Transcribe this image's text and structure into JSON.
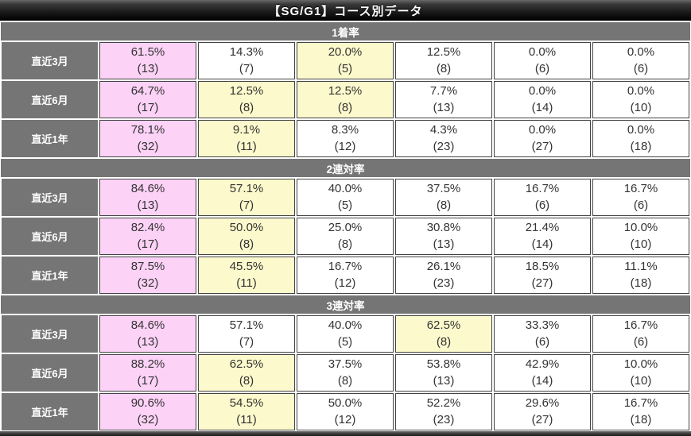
{
  "title": "【SG/G1】コース別データ",
  "colors": {
    "pink_highlight": "#fcd2f6",
    "yellow_highlight": "#fcfacc",
    "header_gray": "#757575",
    "cell_border": "#444444",
    "title_bar_black": "#1c1c1c",
    "cell_text": "#333333"
  },
  "row_labels": [
    "直近3月",
    "直近6月",
    "直近1年"
  ],
  "sections": [
    {
      "header": "1着率",
      "rows": [
        {
          "label": "直近3月",
          "cells": [
            {
              "pct": "61.5%",
              "count": "(13)",
              "bg": "pink"
            },
            {
              "pct": "14.3%",
              "count": "(7)",
              "bg": "white"
            },
            {
              "pct": "20.0%",
              "count": "(5)",
              "bg": "yellow"
            },
            {
              "pct": "12.5%",
              "count": "(8)",
              "bg": "white"
            },
            {
              "pct": "0.0%",
              "count": "(6)",
              "bg": "white"
            },
            {
              "pct": "0.0%",
              "count": "(6)",
              "bg": "white"
            }
          ]
        },
        {
          "label": "直近6月",
          "cells": [
            {
              "pct": "64.7%",
              "count": "(17)",
              "bg": "pink"
            },
            {
              "pct": "12.5%",
              "count": "(8)",
              "bg": "yellow"
            },
            {
              "pct": "12.5%",
              "count": "(8)",
              "bg": "yellow"
            },
            {
              "pct": "7.7%",
              "count": "(13)",
              "bg": "white"
            },
            {
              "pct": "0.0%",
              "count": "(14)",
              "bg": "white"
            },
            {
              "pct": "0.0%",
              "count": "(10)",
              "bg": "white"
            }
          ]
        },
        {
          "label": "直近1年",
          "cells": [
            {
              "pct": "78.1%",
              "count": "(32)",
              "bg": "pink"
            },
            {
              "pct": "9.1%",
              "count": "(11)",
              "bg": "yellow"
            },
            {
              "pct": "8.3%",
              "count": "(12)",
              "bg": "white"
            },
            {
              "pct": "4.3%",
              "count": "(23)",
              "bg": "white"
            },
            {
              "pct": "0.0%",
              "count": "(27)",
              "bg": "white"
            },
            {
              "pct": "0.0%",
              "count": "(18)",
              "bg": "white"
            }
          ]
        }
      ]
    },
    {
      "header": "2連対率",
      "rows": [
        {
          "label": "直近3月",
          "cells": [
            {
              "pct": "84.6%",
              "count": "(13)",
              "bg": "pink"
            },
            {
              "pct": "57.1%",
              "count": "(7)",
              "bg": "yellow"
            },
            {
              "pct": "40.0%",
              "count": "(5)",
              "bg": "white"
            },
            {
              "pct": "37.5%",
              "count": "(8)",
              "bg": "white"
            },
            {
              "pct": "16.7%",
              "count": "(6)",
              "bg": "white"
            },
            {
              "pct": "16.7%",
              "count": "(6)",
              "bg": "white"
            }
          ]
        },
        {
          "label": "直近6月",
          "cells": [
            {
              "pct": "82.4%",
              "count": "(17)",
              "bg": "pink"
            },
            {
              "pct": "50.0%",
              "count": "(8)",
              "bg": "yellow"
            },
            {
              "pct": "25.0%",
              "count": "(8)",
              "bg": "white"
            },
            {
              "pct": "30.8%",
              "count": "(13)",
              "bg": "white"
            },
            {
              "pct": "21.4%",
              "count": "(14)",
              "bg": "white"
            },
            {
              "pct": "10.0%",
              "count": "(10)",
              "bg": "white"
            }
          ]
        },
        {
          "label": "直近1年",
          "cells": [
            {
              "pct": "87.5%",
              "count": "(32)",
              "bg": "pink"
            },
            {
              "pct": "45.5%",
              "count": "(11)",
              "bg": "yellow"
            },
            {
              "pct": "16.7%",
              "count": "(12)",
              "bg": "white"
            },
            {
              "pct": "26.1%",
              "count": "(23)",
              "bg": "white"
            },
            {
              "pct": "18.5%",
              "count": "(27)",
              "bg": "white"
            },
            {
              "pct": "11.1%",
              "count": "(18)",
              "bg": "white"
            }
          ]
        }
      ]
    },
    {
      "header": "3連対率",
      "rows": [
        {
          "label": "直近3月",
          "cells": [
            {
              "pct": "84.6%",
              "count": "(13)",
              "bg": "pink"
            },
            {
              "pct": "57.1%",
              "count": "(7)",
              "bg": "white"
            },
            {
              "pct": "40.0%",
              "count": "(5)",
              "bg": "white"
            },
            {
              "pct": "62.5%",
              "count": "(8)",
              "bg": "yellow"
            },
            {
              "pct": "33.3%",
              "count": "(6)",
              "bg": "white"
            },
            {
              "pct": "16.7%",
              "count": "(6)",
              "bg": "white"
            }
          ]
        },
        {
          "label": "直近6月",
          "cells": [
            {
              "pct": "88.2%",
              "count": "(17)",
              "bg": "pink"
            },
            {
              "pct": "62.5%",
              "count": "(8)",
              "bg": "yellow"
            },
            {
              "pct": "37.5%",
              "count": "(8)",
              "bg": "white"
            },
            {
              "pct": "53.8%",
              "count": "(13)",
              "bg": "white"
            },
            {
              "pct": "42.9%",
              "count": "(14)",
              "bg": "white"
            },
            {
              "pct": "10.0%",
              "count": "(10)",
              "bg": "white"
            }
          ]
        },
        {
          "label": "直近1年",
          "cells": [
            {
              "pct": "90.6%",
              "count": "(32)",
              "bg": "pink"
            },
            {
              "pct": "54.5%",
              "count": "(11)",
              "bg": "yellow"
            },
            {
              "pct": "50.0%",
              "count": "(12)",
              "bg": "white"
            },
            {
              "pct": "52.2%",
              "count": "(23)",
              "bg": "white"
            },
            {
              "pct": "29.6%",
              "count": "(27)",
              "bg": "white"
            },
            {
              "pct": "16.7%",
              "count": "(18)",
              "bg": "white"
            }
          ]
        }
      ]
    }
  ],
  "chart_data": {
    "type": "table",
    "title": "【SG/G1】コース別データ",
    "row_labels": [
      "直近3月",
      "直近6月",
      "直近1年"
    ],
    "sections": [
      {
        "name": "1着率",
        "rows": [
          {
            "label": "直近3月",
            "values_pct": [
              61.5,
              14.3,
              20.0,
              12.5,
              0.0,
              0.0
            ],
            "counts": [
              13,
              7,
              5,
              8,
              6,
              6
            ]
          },
          {
            "label": "直近6月",
            "values_pct": [
              64.7,
              12.5,
              12.5,
              7.7,
              0.0,
              0.0
            ],
            "counts": [
              17,
              8,
              8,
              13,
              14,
              10
            ]
          },
          {
            "label": "直近1年",
            "values_pct": [
              78.1,
              9.1,
              8.3,
              4.3,
              0.0,
              0.0
            ],
            "counts": [
              32,
              11,
              12,
              23,
              27,
              18
            ]
          }
        ]
      },
      {
        "name": "2連対率",
        "rows": [
          {
            "label": "直近3月",
            "values_pct": [
              84.6,
              57.1,
              40.0,
              37.5,
              16.7,
              16.7
            ],
            "counts": [
              13,
              7,
              5,
              8,
              6,
              6
            ]
          },
          {
            "label": "直近6月",
            "values_pct": [
              82.4,
              50.0,
              25.0,
              30.8,
              21.4,
              10.0
            ],
            "counts": [
              17,
              8,
              8,
              13,
              14,
              10
            ]
          },
          {
            "label": "直近1年",
            "values_pct": [
              87.5,
              45.5,
              16.7,
              26.1,
              18.5,
              11.1
            ],
            "counts": [
              32,
              11,
              12,
              23,
              27,
              18
            ]
          }
        ]
      },
      {
        "name": "3連対率",
        "rows": [
          {
            "label": "直近3月",
            "values_pct": [
              84.6,
              57.1,
              40.0,
              62.5,
              33.3,
              16.7
            ],
            "counts": [
              13,
              7,
              5,
              8,
              6,
              6
            ]
          },
          {
            "label": "直近6月",
            "values_pct": [
              88.2,
              62.5,
              37.5,
              53.8,
              42.9,
              10.0
            ],
            "counts": [
              17,
              8,
              8,
              13,
              14,
              10
            ]
          },
          {
            "label": "直近1年",
            "values_pct": [
              90.6,
              54.5,
              50.0,
              52.2,
              29.6,
              16.7
            ],
            "counts": [
              32,
              11,
              12,
              23,
              27,
              18
            ]
          }
        ]
      }
    ]
  }
}
